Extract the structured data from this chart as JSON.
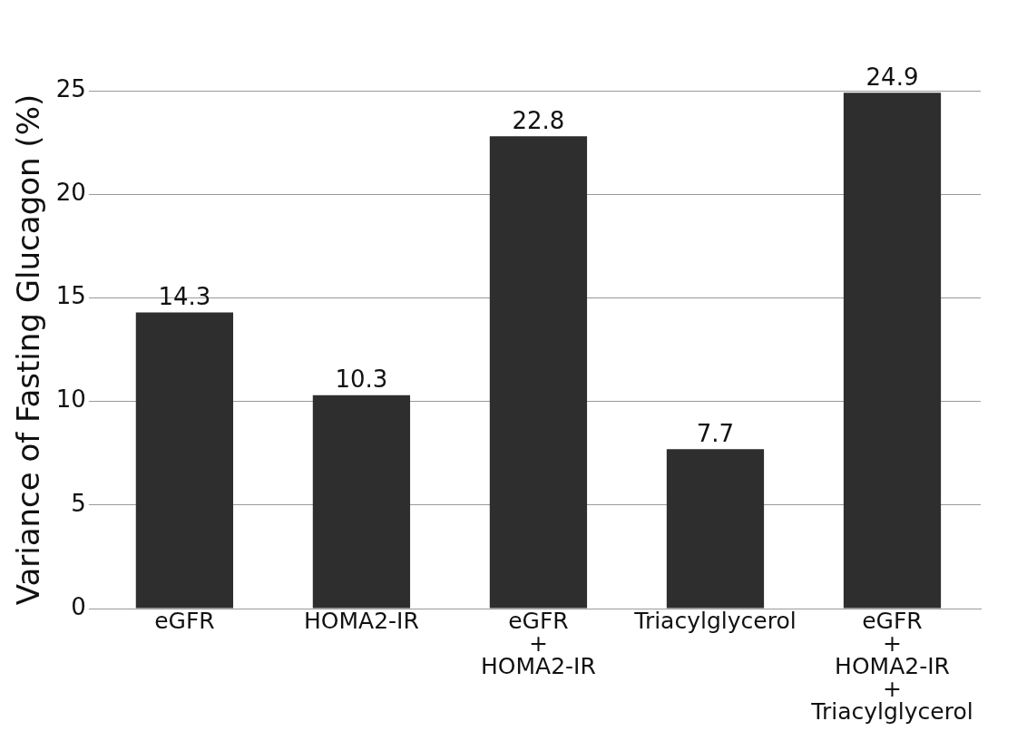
{
  "chart_data": {
    "type": "bar",
    "ylabel": "Variance of Fasting Glucagon (%)",
    "categories": [
      "eGFR",
      "HOMA2-IR",
      "eGFR\n+\nHOMA2-IR",
      "Triacylglycerol",
      "eGFR\n+\nHOMA2-IR\n+\nTriacylglycerol"
    ],
    "values": [
      14.3,
      10.3,
      22.8,
      7.7,
      24.9
    ],
    "color": "#2e2e2e",
    "ylim": [
      0,
      25
    ],
    "yticks": [
      0,
      5,
      10,
      15,
      20,
      25
    ],
    "grid": "y",
    "data_labels": true
  }
}
